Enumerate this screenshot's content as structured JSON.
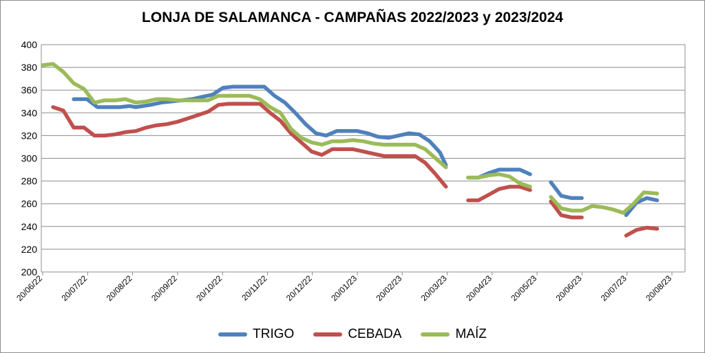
{
  "chart_data": {
    "type": "line",
    "title": "LONJA DE SALAMANCA - CAMPAÑAS 2022/2023 y 2023/2024",
    "ylim": [
      200,
      400
    ],
    "y_ticks": [
      "200",
      "220",
      "240",
      "260",
      "280",
      "300",
      "320",
      "340",
      "360",
      "380",
      "400"
    ],
    "x_ticks": [
      "20/06/22",
      "20/07/22",
      "20/08/22",
      "20/09/22",
      "20/10/22",
      "20/11/22",
      "20/12/22",
      "20/01/23",
      "20/02/23",
      "20/03/23",
      "20/04/23",
      "20/05/23",
      "20/06/23",
      "20/07/23",
      "20/08/23"
    ],
    "xlim": [
      "2022-06-20",
      "2023-08-20"
    ],
    "grid": "horizontal",
    "legend_position": "bottom",
    "series": [
      {
        "name": "TRIGO",
        "color": "#4f81bd",
        "points": [
          [
            "2022-07-11",
            352
          ],
          [
            "2022-07-20",
            352
          ],
          [
            "2022-07-27",
            345
          ],
          [
            "2022-08-04",
            345
          ],
          [
            "2022-08-11",
            345
          ],
          [
            "2022-08-18",
            346
          ],
          [
            "2022-08-22",
            345
          ],
          [
            "2022-09-01",
            347
          ],
          [
            "2022-09-08",
            349
          ],
          [
            "2022-09-15",
            350
          ],
          [
            "2022-09-22",
            351
          ],
          [
            "2022-09-29",
            352
          ],
          [
            "2022-10-06",
            354
          ],
          [
            "2022-10-13",
            356
          ],
          [
            "2022-10-20",
            362
          ],
          [
            "2022-10-27",
            363
          ],
          [
            "2022-11-03",
            363
          ],
          [
            "2022-11-10",
            363
          ],
          [
            "2022-11-17",
            363
          ],
          [
            "2022-11-24",
            355
          ],
          [
            "2022-12-01",
            349
          ],
          [
            "2022-12-08",
            340
          ],
          [
            "2022-12-15",
            330
          ],
          [
            "2022-12-22",
            322
          ],
          [
            "2022-12-29",
            320
          ],
          [
            "2023-01-05",
            324
          ],
          [
            "2023-01-12",
            324
          ],
          [
            "2023-01-19",
            324
          ],
          [
            "2023-01-26",
            322
          ],
          [
            "2023-02-02",
            319
          ],
          [
            "2023-02-09",
            318
          ],
          [
            "2023-02-16",
            320
          ],
          [
            "2023-02-23",
            322
          ],
          [
            "2023-03-02",
            321
          ],
          [
            "2023-03-09",
            315
          ],
          [
            "2023-03-16",
            305
          ],
          [
            "2023-03-20",
            294
          ],
          null,
          [
            "2023-04-04",
            283
          ],
          [
            "2023-04-11",
            283
          ],
          [
            "2023-04-18",
            287
          ],
          [
            "2023-04-25",
            290
          ],
          [
            "2023-05-02",
            290
          ],
          [
            "2023-05-09",
            290
          ],
          [
            "2023-05-16",
            286
          ],
          null,
          [
            "2023-05-30",
            279
          ],
          [
            "2023-06-06",
            267
          ],
          [
            "2023-06-13",
            265
          ],
          [
            "2023-06-20",
            265
          ],
          null,
          [
            "2023-07-20",
            250
          ],
          [
            "2023-07-27",
            261
          ],
          [
            "2023-08-03",
            265
          ],
          [
            "2023-08-10",
            263
          ]
        ]
      },
      {
        "name": "CEBADA",
        "color": "#c0504d",
        "points": [
          [
            "2022-06-27",
            345
          ],
          [
            "2022-07-04",
            342
          ],
          [
            "2022-07-11",
            327
          ],
          [
            "2022-07-18",
            327
          ],
          [
            "2022-07-25",
            320
          ],
          [
            "2022-08-01",
            320
          ],
          [
            "2022-08-08",
            321
          ],
          [
            "2022-08-15",
            323
          ],
          [
            "2022-08-22",
            324
          ],
          [
            "2022-08-29",
            327
          ],
          [
            "2022-09-05",
            329
          ],
          [
            "2022-09-12",
            330
          ],
          [
            "2022-09-19",
            332
          ],
          [
            "2022-09-26",
            335
          ],
          [
            "2022-10-03",
            338
          ],
          [
            "2022-10-10",
            341
          ],
          [
            "2022-10-17",
            347
          ],
          [
            "2022-10-24",
            348
          ],
          [
            "2022-10-31",
            348
          ],
          [
            "2022-11-07",
            348
          ],
          [
            "2022-11-14",
            348
          ],
          [
            "2022-11-21",
            340
          ],
          [
            "2022-11-28",
            333
          ],
          [
            "2022-12-05",
            322
          ],
          [
            "2022-12-12",
            314
          ],
          [
            "2022-12-19",
            306
          ],
          [
            "2022-12-26",
            303
          ],
          [
            "2023-01-02",
            308
          ],
          [
            "2023-01-09",
            308
          ],
          [
            "2023-01-16",
            308
          ],
          [
            "2023-01-23",
            306
          ],
          [
            "2023-01-30",
            304
          ],
          [
            "2023-02-06",
            302
          ],
          [
            "2023-02-13",
            302
          ],
          [
            "2023-02-20",
            302
          ],
          [
            "2023-02-27",
            302
          ],
          [
            "2023-03-06",
            296
          ],
          [
            "2023-03-13",
            286
          ],
          [
            "2023-03-20",
            275
          ],
          null,
          [
            "2023-04-04",
            263
          ],
          [
            "2023-04-11",
            263
          ],
          [
            "2023-04-18",
            268
          ],
          [
            "2023-04-25",
            273
          ],
          [
            "2023-05-02",
            275
          ],
          [
            "2023-05-09",
            275
          ],
          [
            "2023-05-16",
            272
          ],
          null,
          [
            "2023-05-30",
            262
          ],
          [
            "2023-06-06",
            250
          ],
          [
            "2023-06-13",
            248
          ],
          [
            "2023-06-20",
            248
          ],
          null,
          [
            "2023-07-20",
            232
          ],
          [
            "2023-07-27",
            237
          ],
          [
            "2023-08-03",
            239
          ],
          [
            "2023-08-10",
            238
          ]
        ]
      },
      {
        "name": "MAÍZ",
        "color": "#9bbb59",
        "points": [
          [
            "2022-06-20",
            382
          ],
          [
            "2022-06-27",
            383
          ],
          [
            "2022-07-04",
            376
          ],
          [
            "2022-07-11",
            366
          ],
          [
            "2022-07-18",
            361
          ],
          [
            "2022-07-25",
            349
          ],
          [
            "2022-08-01",
            351
          ],
          [
            "2022-08-08",
            351
          ],
          [
            "2022-08-15",
            352
          ],
          [
            "2022-08-22",
            349
          ],
          [
            "2022-08-29",
            350
          ],
          [
            "2022-09-05",
            352
          ],
          [
            "2022-09-12",
            352
          ],
          [
            "2022-09-19",
            351
          ],
          [
            "2022-09-26",
            351
          ],
          [
            "2022-10-03",
            351
          ],
          [
            "2022-10-10",
            351
          ],
          [
            "2022-10-17",
            355
          ],
          [
            "2022-10-24",
            355
          ],
          [
            "2022-10-31",
            355
          ],
          [
            "2022-11-07",
            355
          ],
          [
            "2022-11-14",
            352
          ],
          [
            "2022-11-21",
            345
          ],
          [
            "2022-11-28",
            340
          ],
          [
            "2022-12-05",
            326
          ],
          [
            "2022-12-12",
            318
          ],
          [
            "2022-12-19",
            314
          ],
          [
            "2022-12-26",
            312
          ],
          [
            "2023-01-02",
            315
          ],
          [
            "2023-01-09",
            315
          ],
          [
            "2023-01-16",
            316
          ],
          [
            "2023-01-23",
            315
          ],
          [
            "2023-01-30",
            313
          ],
          [
            "2023-02-06",
            312
          ],
          [
            "2023-02-13",
            312
          ],
          [
            "2023-02-20",
            312
          ],
          [
            "2023-02-27",
            312
          ],
          [
            "2023-03-06",
            308
          ],
          [
            "2023-03-13",
            300
          ],
          [
            "2023-03-20",
            292
          ],
          null,
          [
            "2023-04-04",
            283
          ],
          [
            "2023-04-11",
            283
          ],
          [
            "2023-04-18",
            285
          ],
          [
            "2023-04-25",
            286
          ],
          [
            "2023-05-02",
            284
          ],
          [
            "2023-05-09",
            278
          ],
          [
            "2023-05-16",
            275
          ],
          null,
          [
            "2023-05-30",
            266
          ],
          [
            "2023-06-06",
            256
          ],
          [
            "2023-06-13",
            254
          ],
          [
            "2023-06-20",
            254
          ],
          [
            "2023-06-27",
            258
          ],
          [
            "2023-07-04",
            257
          ],
          [
            "2023-07-11",
            255
          ],
          [
            "2023-07-18",
            252
          ],
          [
            "2023-07-25",
            260
          ],
          [
            "2023-08-01",
            270
          ],
          [
            "2023-08-10",
            269
          ]
        ]
      }
    ]
  }
}
